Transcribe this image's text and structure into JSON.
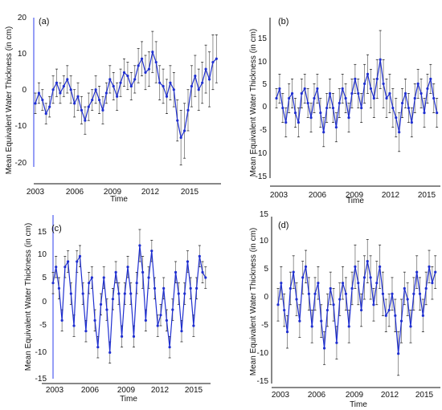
{
  "chart_data": [
    {
      "type": "line",
      "panel_label": "(a)",
      "xlabel": "Time",
      "ylabel": "Mean Equivalent Water Thickness (in cm)",
      "x_ticks": [
        "2003",
        "2006",
        "2009",
        "2012",
        "2015"
      ],
      "y_ticks": [
        "20",
        "10",
        "0",
        "-10",
        "-20"
      ],
      "xlim": [
        2003.0,
        2015.9
      ],
      "ylim": [
        -22,
        22
      ],
      "error_bar_color": "#111111",
      "line_color": "#1f2fd0",
      "series": [
        {
          "x": [
            2003.0,
            2003.25,
            2003.5,
            2003.75,
            2004.0,
            2004.25,
            2004.5,
            2004.75,
            2005.0,
            2005.25,
            2005.5,
            2005.75,
            2006.0,
            2006.25,
            2006.5,
            2006.75,
            2007.0,
            2007.25,
            2007.5,
            2007.75,
            2008.0,
            2008.25,
            2008.5,
            2008.75,
            2009.0,
            2009.25,
            2009.5,
            2009.75,
            2010.0,
            2010.25,
            2010.5,
            2010.75,
            2011.0,
            2011.25,
            2011.5,
            2011.75,
            2012.0,
            2012.25,
            2012.5,
            2012.75,
            2013.0,
            2013.25,
            2013.5,
            2013.75,
            2014.0,
            2014.25,
            2014.5,
            2014.75,
            2015.0,
            2015.25,
            2015.5,
            2015.75
          ],
          "values": [
            -3,
            0,
            -2,
            -6,
            -4,
            1,
            3,
            0,
            2,
            4,
            1,
            -3,
            -1,
            -5,
            -8,
            -4,
            -2,
            1,
            -2,
            -5,
            0,
            4,
            2,
            -1,
            3,
            6,
            5,
            2,
            4,
            8,
            10,
            6,
            7,
            12,
            9,
            3,
            2,
            -1,
            3,
            1,
            -8,
            -13,
            -11,
            -5,
            2,
            5,
            1,
            3,
            7,
            4,
            9,
            10
          ],
          "errors": [
            3,
            3,
            3,
            3,
            3,
            4,
            4,
            3,
            3,
            4,
            4,
            4,
            4,
            4,
            4,
            4,
            3,
            4,
            4,
            4,
            3,
            4,
            4,
            4,
            4,
            4,
            4,
            4,
            4,
            5,
            5,
            5,
            5,
            6,
            6,
            5,
            5,
            5,
            5,
            5,
            6,
            8,
            8,
            6,
            6,
            6,
            6,
            6,
            7,
            8,
            8,
            7
          ]
        }
      ]
    },
    {
      "type": "line",
      "panel_label": "(b)",
      "xlabel": "Time",
      "ylabel": "Mean Equivalent Water Thickness (in cm)",
      "x_ticks": [
        "2003",
        "2006",
        "2009",
        "2012",
        "2015"
      ],
      "y_ticks": [
        "15",
        "10",
        "5",
        "0",
        "-5",
        "-10",
        "-15"
      ],
      "xlim": [
        2003.0,
        2015.9
      ],
      "ylim": [
        -15.5,
        17
      ],
      "error_bar_color": "#111111",
      "line_color": "#1f2fd0",
      "series": [
        {
          "x": [
            2003.0,
            2003.25,
            2003.5,
            2003.75,
            2004.0,
            2004.25,
            2004.5,
            2004.75,
            2005.0,
            2005.25,
            2005.5,
            2005.75,
            2006.0,
            2006.25,
            2006.5,
            2006.75,
            2007.0,
            2007.25,
            2007.5,
            2007.75,
            2008.0,
            2008.25,
            2008.5,
            2008.75,
            2009.0,
            2009.25,
            2009.5,
            2009.75,
            2010.0,
            2010.25,
            2010.5,
            2010.75,
            2011.0,
            2011.25,
            2011.5,
            2011.75,
            2012.0,
            2012.25,
            2012.5,
            2012.75,
            2013.0,
            2013.25,
            2013.5,
            2013.75,
            2014.0,
            2014.25,
            2014.5,
            2014.75,
            2015.0,
            2015.25,
            2015.5,
            2015.75
          ],
          "values": [
            1,
            3,
            -1,
            -4,
            1,
            2,
            -2,
            -4,
            2,
            3,
            0,
            -3,
            1,
            3,
            -2,
            -6,
            -1,
            2,
            -1,
            -5,
            0,
            3,
            1,
            -3,
            2,
            5,
            2,
            -1,
            4,
            6,
            3,
            1,
            5,
            9,
            4,
            1,
            2,
            -1,
            -3,
            -6,
            0,
            2,
            -1,
            -4,
            1,
            4,
            2,
            -2,
            3,
            5,
            1,
            -2
          ],
          "errors": [
            2,
            3,
            3,
            3,
            3,
            3,
            3,
            3,
            3,
            3,
            3,
            3,
            3,
            3,
            3,
            3,
            3,
            3,
            3,
            3,
            3,
            3,
            3,
            3,
            3,
            3,
            3,
            3,
            4,
            4,
            4,
            4,
            4,
            6,
            5,
            4,
            4,
            4,
            4,
            4,
            3,
            3,
            3,
            3,
            3,
            3,
            3,
            3,
            3,
            3,
            3,
            3
          ]
        }
      ]
    },
    {
      "type": "line",
      "panel_label": "(c)",
      "xlabel": "Time",
      "ylabel": "Mean Equivalent Water Thickness (in cm)",
      "x_ticks": [
        "2003",
        "2006",
        "2009",
        "2012",
        "2015"
      ],
      "y_ticks": [
        "15",
        "10",
        "5",
        "0",
        "-5",
        "-10",
        "-15"
      ],
      "xlim": [
        2003.0,
        2015.9
      ],
      "ylim": [
        -15.5,
        13
      ],
      "error_bar_color": "#111111",
      "line_color": "#1f2fd0",
      "series": [
        {
          "x": [
            2003.0,
            2003.25,
            2003.5,
            2003.75,
            2004.0,
            2004.25,
            2004.5,
            2004.75,
            2005.0,
            2005.25,
            2005.5,
            2005.75,
            2006.0,
            2006.25,
            2006.5,
            2006.75,
            2007.0,
            2007.25,
            2007.5,
            2007.75,
            2008.0,
            2008.25,
            2008.5,
            2008.75,
            2009.0,
            2009.25,
            2009.5,
            2009.75,
            2010.0,
            2010.25,
            2010.5,
            2010.75,
            2011.0,
            2011.25,
            2011.5,
            2011.75,
            2012.0,
            2012.25,
            2012.5,
            2012.75,
            2013.0,
            2013.25,
            2013.5,
            2013.75,
            2014.0,
            2014.25,
            2014.5,
            2014.75,
            2015.0,
            2015.25,
            2015.5,
            2015.75
          ],
          "values": [
            3,
            6,
            2,
            -4,
            6,
            7,
            1,
            -5,
            7,
            8,
            1,
            -6,
            3,
            4,
            -4,
            -9,
            -1,
            4,
            -2,
            -10,
            0,
            5,
            1,
            -7,
            1,
            6,
            1,
            -7,
            3,
            10,
            5,
            -4,
            4,
            9,
            2,
            -5,
            -3,
            2,
            -4,
            -9,
            -2,
            5,
            1,
            -6,
            1,
            7,
            2,
            -5,
            2,
            8,
            5,
            4
          ],
          "errors": [
            2,
            2,
            2,
            2,
            2,
            2,
            2,
            2,
            2,
            2,
            2,
            2,
            2,
            2,
            2,
            2,
            2,
            2,
            2,
            2,
            2,
            2,
            2,
            2,
            2,
            2,
            2,
            2,
            2,
            3,
            3,
            2,
            2,
            2,
            2,
            2,
            2,
            2,
            2,
            2,
            2,
            2,
            2,
            2,
            2,
            2,
            2,
            2,
            2,
            2,
            2,
            2
          ]
        }
      ]
    },
    {
      "type": "line",
      "panel_label": "(d)",
      "xlabel": "Time",
      "ylabel": "Mean Equivalent Water Thickness (in cm)",
      "x_ticks": [
        "2003",
        "2006",
        "2009",
        "2012",
        "2015"
      ],
      "y_ticks": [
        "15",
        "10",
        "5",
        "0",
        "-5",
        "-10",
        "-15"
      ],
      "xlim": [
        2003.0,
        2015.9
      ],
      "ylim": [
        -15.5,
        15.5
      ],
      "error_bar_color": "#111111",
      "line_color": "#1f2fd0",
      "series": [
        {
          "x": [
            2003.0,
            2003.25,
            2003.5,
            2003.75,
            2004.0,
            2004.25,
            2004.5,
            2004.75,
            2005.0,
            2005.25,
            2005.5,
            2005.75,
            2006.0,
            2006.25,
            2006.5,
            2006.75,
            2007.0,
            2007.25,
            2007.5,
            2007.75,
            2008.0,
            2008.25,
            2008.5,
            2008.75,
            2009.0,
            2009.25,
            2009.5,
            2009.75,
            2010.0,
            2010.25,
            2010.5,
            2010.75,
            2011.0,
            2011.25,
            2011.5,
            2011.75,
            2012.0,
            2012.25,
            2012.5,
            2012.75,
            2013.0,
            2013.25,
            2013.5,
            2013.75,
            2014.0,
            2014.25,
            2014.5,
            2014.75,
            2015.0,
            2015.25,
            2015.5,
            2015.75
          ],
          "values": [
            -1,
            3,
            -2,
            -6,
            2,
            5,
            0,
            -4,
            4,
            6,
            1,
            -5,
            1,
            3,
            -4,
            -9,
            -2,
            2,
            -1,
            -8,
            0,
            3,
            1,
            -5,
            2,
            6,
            3,
            -2,
            4,
            7,
            4,
            -1,
            3,
            6,
            1,
            -3,
            -2,
            1,
            -3,
            -10,
            -4,
            2,
            0,
            -5,
            1,
            5,
            1,
            -3,
            2,
            6,
            3,
            5
          ],
          "errors": [
            3,
            3,
            3,
            3,
            3,
            3,
            3,
            3,
            3,
            3,
            3,
            3,
            3,
            3,
            3,
            3,
            3,
            3,
            3,
            3,
            3,
            3,
            3,
            3,
            3,
            4,
            4,
            3,
            4,
            4,
            4,
            3,
            4,
            4,
            4,
            3,
            3,
            3,
            3,
            4,
            4,
            3,
            3,
            3,
            3,
            3,
            3,
            3,
            3,
            3,
            3,
            3
          ]
        }
      ]
    }
  ]
}
